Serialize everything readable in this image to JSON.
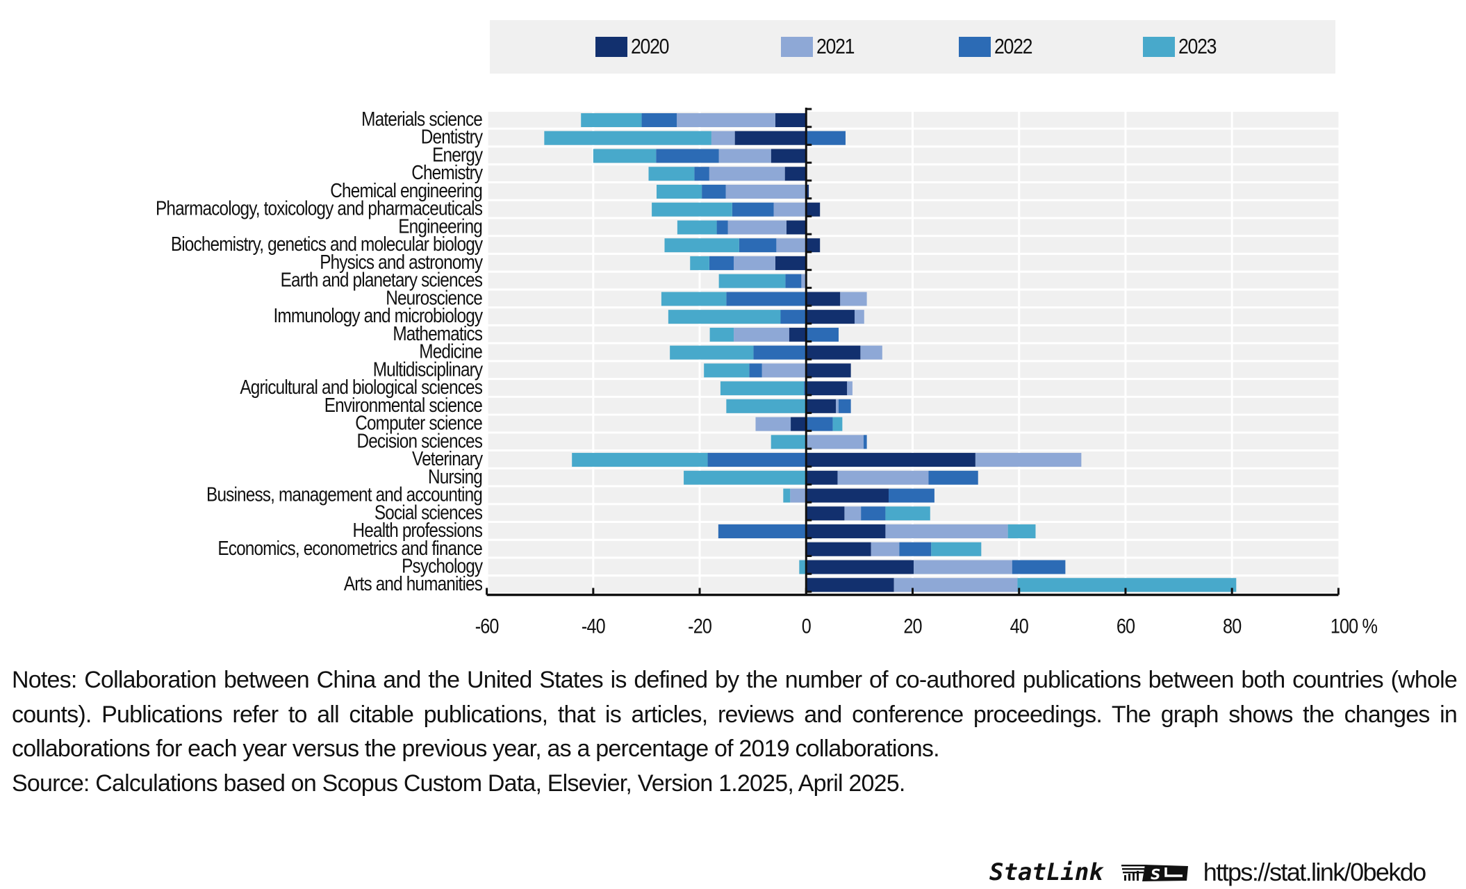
{
  "chart_data": {
    "type": "bar",
    "orientation": "horizontal",
    "stacked": true,
    "title": "",
    "xlabel": "",
    "ylabel": "",
    "xlim": [
      -60,
      100
    ],
    "x_ticks": [
      -60,
      -40,
      -20,
      0,
      20,
      40,
      60,
      80,
      100
    ],
    "x_tick_labels": [
      "-60",
      "-40",
      "-20",
      "0",
      "20",
      "40",
      "60",
      "80",
      "100 %"
    ],
    "grid": "vertical",
    "legend_position": "top",
    "categories": [
      "Materials science",
      "Dentistry",
      "Energy",
      "Chemistry",
      "Chemical engineering",
      "Pharmacology, toxicology and pharmaceuticals",
      "Engineering",
      "Biochemistry, genetics and molecular biology",
      "Physics and astronomy",
      "Earth and planetary sciences",
      "Neuroscience",
      "Immunology and microbiology",
      "Mathematics",
      "Medicine",
      "Multidisciplinary",
      "Agricultural and biological sciences",
      "Environmental science",
      "Computer science",
      "Decision sciences",
      "Veterinary",
      "Nursing",
      "Business, management and accounting",
      "Social sciences",
      "Health professions",
      "Economics, econometrics and finance",
      "Psychology",
      "Arts and humanities"
    ],
    "series": [
      {
        "name": "2020",
        "color": "#12306e",
        "values": [
          -5.8,
          -13.4,
          -6.6,
          -4.0,
          0.5,
          2.6,
          -3.7,
          2.6,
          -5.8,
          0,
          6.4,
          9.1,
          -3.2,
          10.2,
          8.4,
          7.7,
          5.6,
          -2.9,
          0,
          31.8,
          5.9,
          15.5,
          7.2,
          14.9,
          12.2,
          20.2,
          16.5
        ]
      },
      {
        "name": "2021",
        "color": "#8ea8d6",
        "values": [
          -18.5,
          -4.4,
          -9.8,
          -14.2,
          -15.1,
          -6.1,
          -11.0,
          -5.6,
          -7.8,
          -0.9,
          5.0,
          1.8,
          -10.4,
          4.1,
          -8.3,
          1.0,
          0.5,
          -6.6,
          10.8,
          19.9,
          17.1,
          -3.0,
          3.1,
          23.0,
          5.3,
          18.5,
          23.2
        ]
      },
      {
        "name": "2022",
        "color": "#2c6bb5",
        "values": [
          -6.6,
          7.4,
          -11.8,
          -2.8,
          -4.5,
          -7.8,
          -2.1,
          -7.0,
          -4.6,
          -3.0,
          -15.0,
          -4.8,
          6.1,
          -9.9,
          -2.4,
          -0.4,
          2.3,
          5.0,
          0.6,
          -18.5,
          9.3,
          8.6,
          4.6,
          -16.5,
          6.0,
          10.0,
          0
        ]
      },
      {
        "name": "2023",
        "color": "#48a9cb",
        "values": [
          -11.4,
          -31.4,
          -11.8,
          -8.6,
          -8.5,
          -15.1,
          -7.4,
          -14.0,
          -3.6,
          -12.5,
          -12.2,
          -21.1,
          -4.5,
          -15.7,
          -8.5,
          -15.7,
          -15.0,
          1.8,
          -6.6,
          -25.5,
          -23.0,
          -1.3,
          8.4,
          5.2,
          9.4,
          -1.3,
          41.1
        ]
      }
    ]
  },
  "legend": {
    "items": [
      {
        "label": "2020",
        "color": "#12306e"
      },
      {
        "label": "2021",
        "color": "#8ea8d6"
      },
      {
        "label": "2022",
        "color": "#2c6bb5"
      },
      {
        "label": "2023",
        "color": "#48a9cb"
      }
    ]
  },
  "notes": {
    "line1": "Notes: Collaboration between China and the United States is defined by the number of co-authored publications between both countries (whole",
    "line2": "counts). Publications refer to all citable publications, that is articles, reviews and conference proceedings. The graph shows the changes in",
    "line3": "collaborations for each year versus the previous year, as a percentage of 2019 collaborations.",
    "source": "Source: Calculations based on Scopus Custom Data, Elsevier, Version 1.2025, April 2025."
  },
  "footer": {
    "statlink_label": "StatLink",
    "statlink_logo_icon": "statlink-logo-icon",
    "url": "https://stat.link/0bekdo"
  },
  "style": {
    "plot_background": "#f0f0f0",
    "legend_background": "#f0f0f0",
    "axis_color": "#111111"
  }
}
